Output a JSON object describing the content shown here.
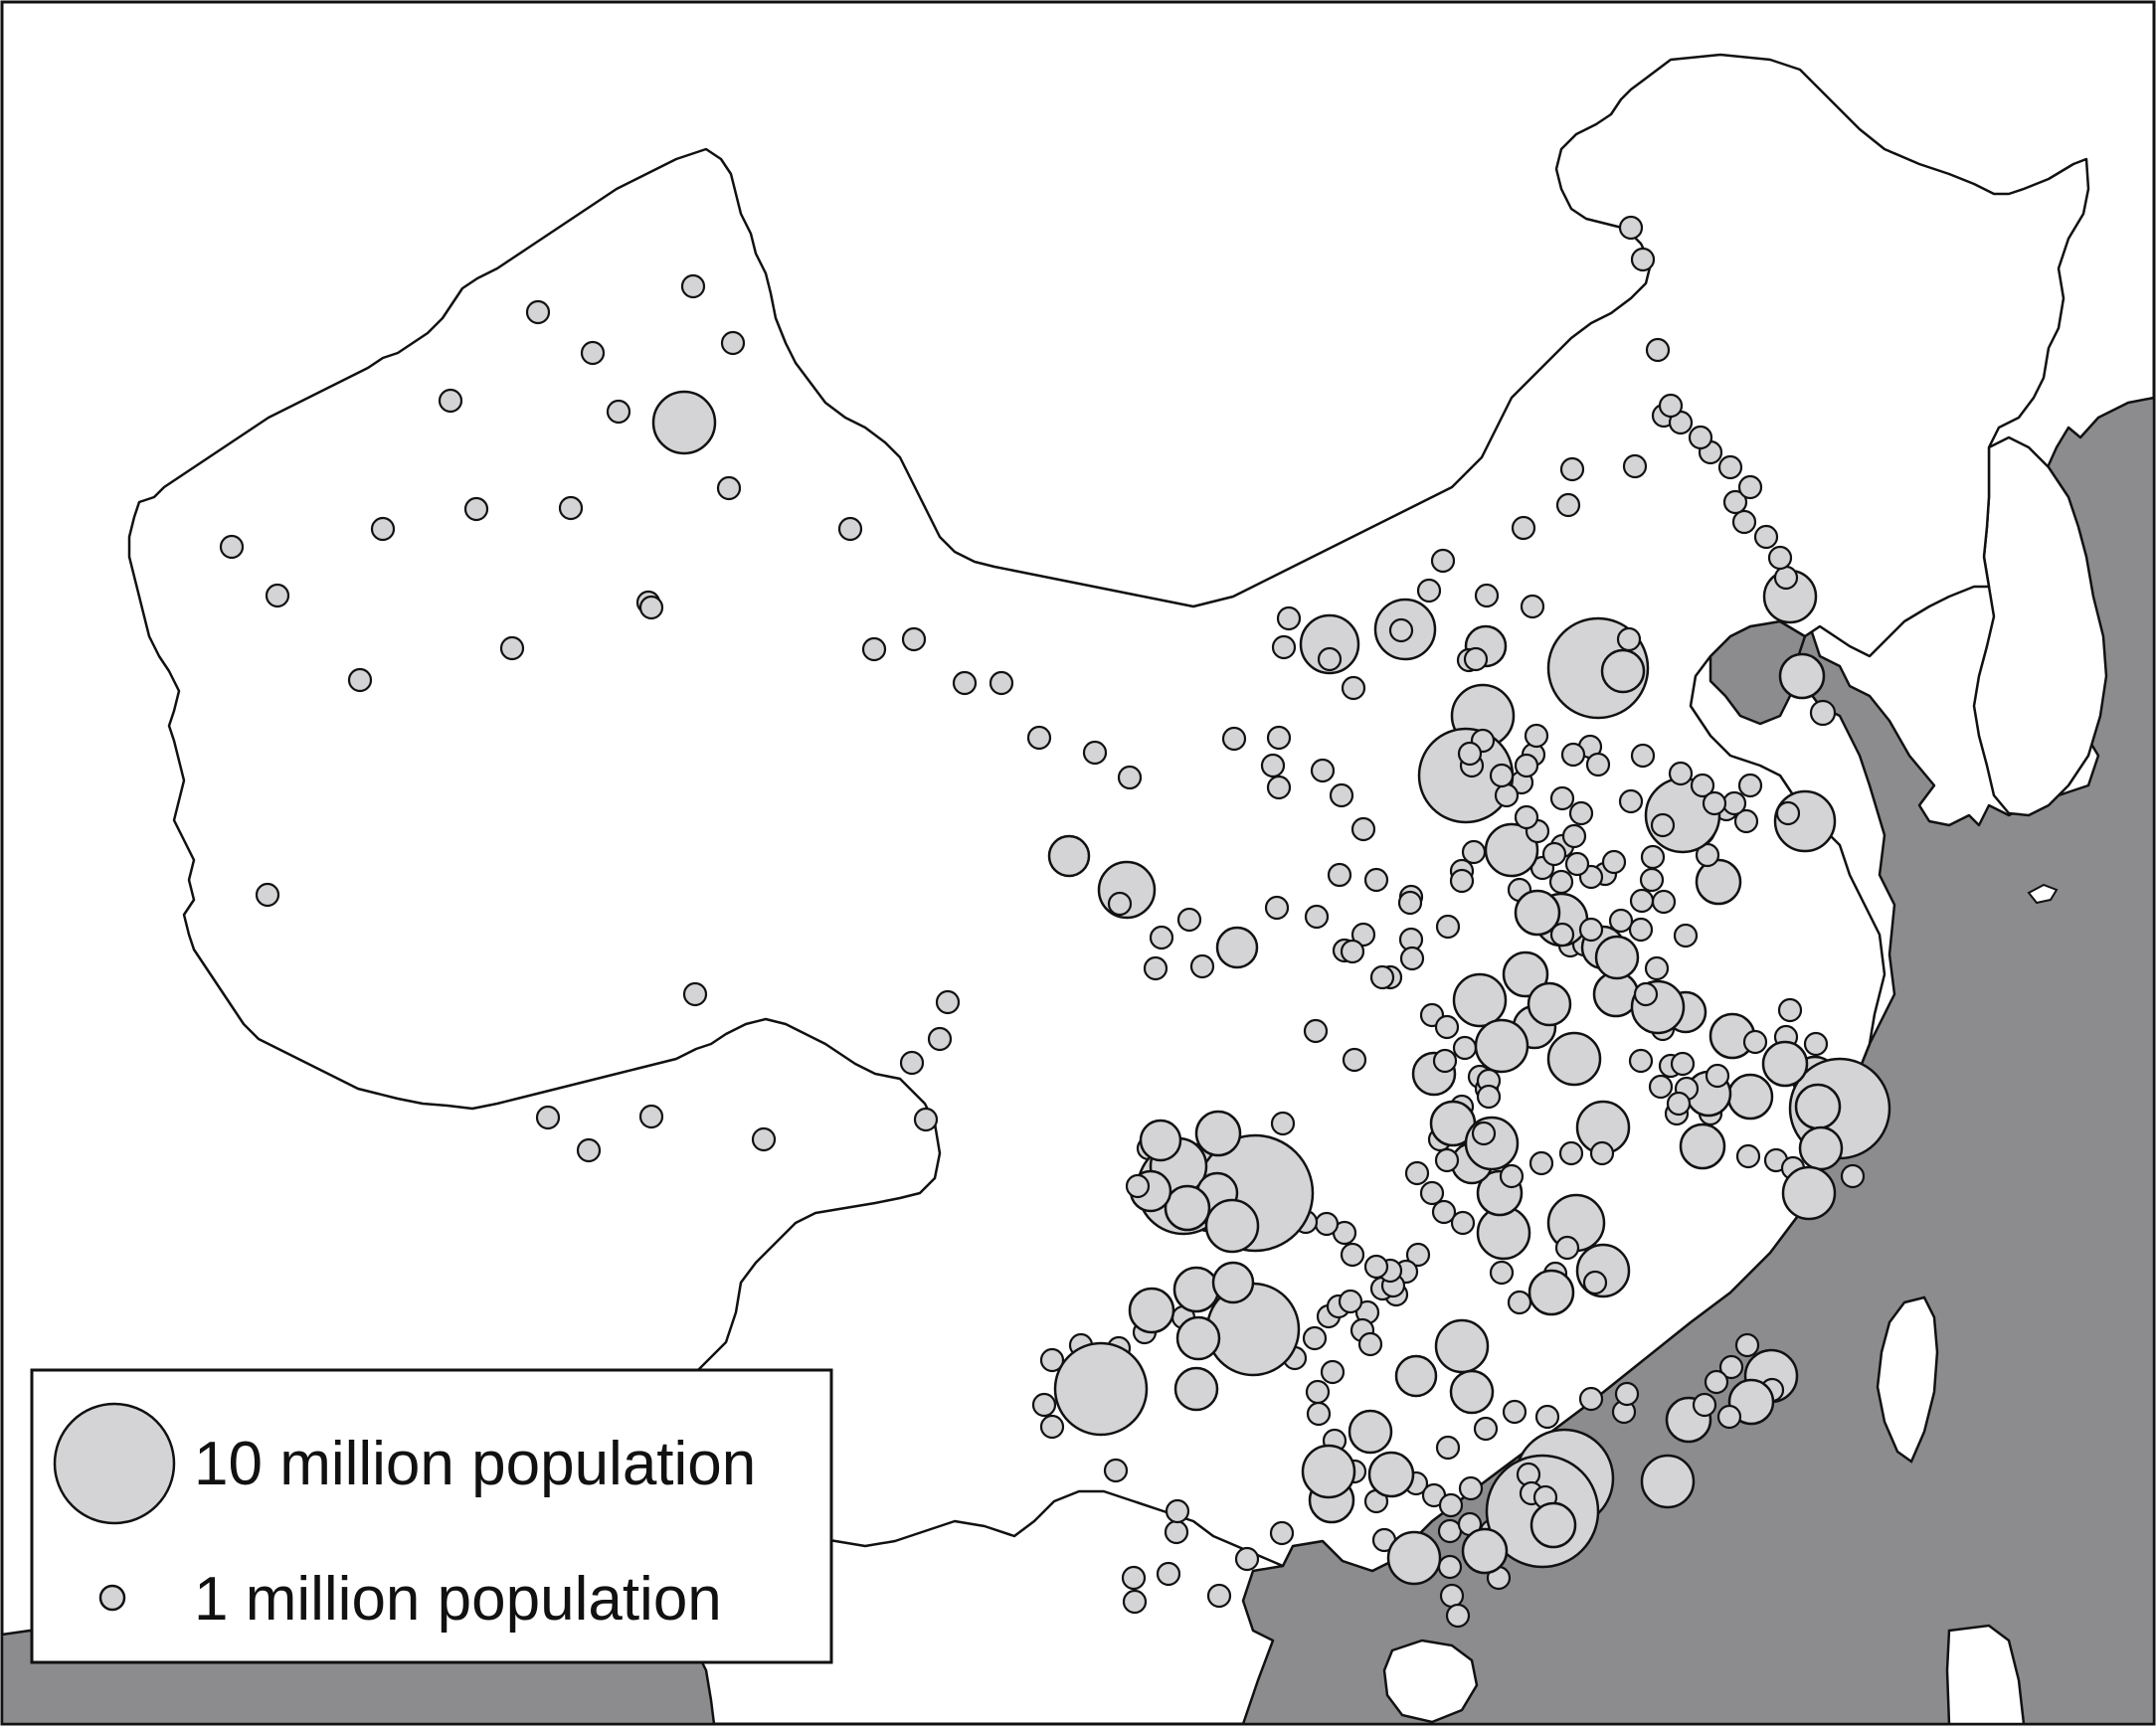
{
  "legend": {
    "large_label": "10 million population",
    "small_label": "1 million population"
  },
  "colors": {
    "background": "#ffffff",
    "land": "#ffffff",
    "sea": "#8c8c8f",
    "city_fill": "#d4d4d6",
    "stroke": "#111111"
  },
  "marker_scale": "circle area proportional to city population"
}
